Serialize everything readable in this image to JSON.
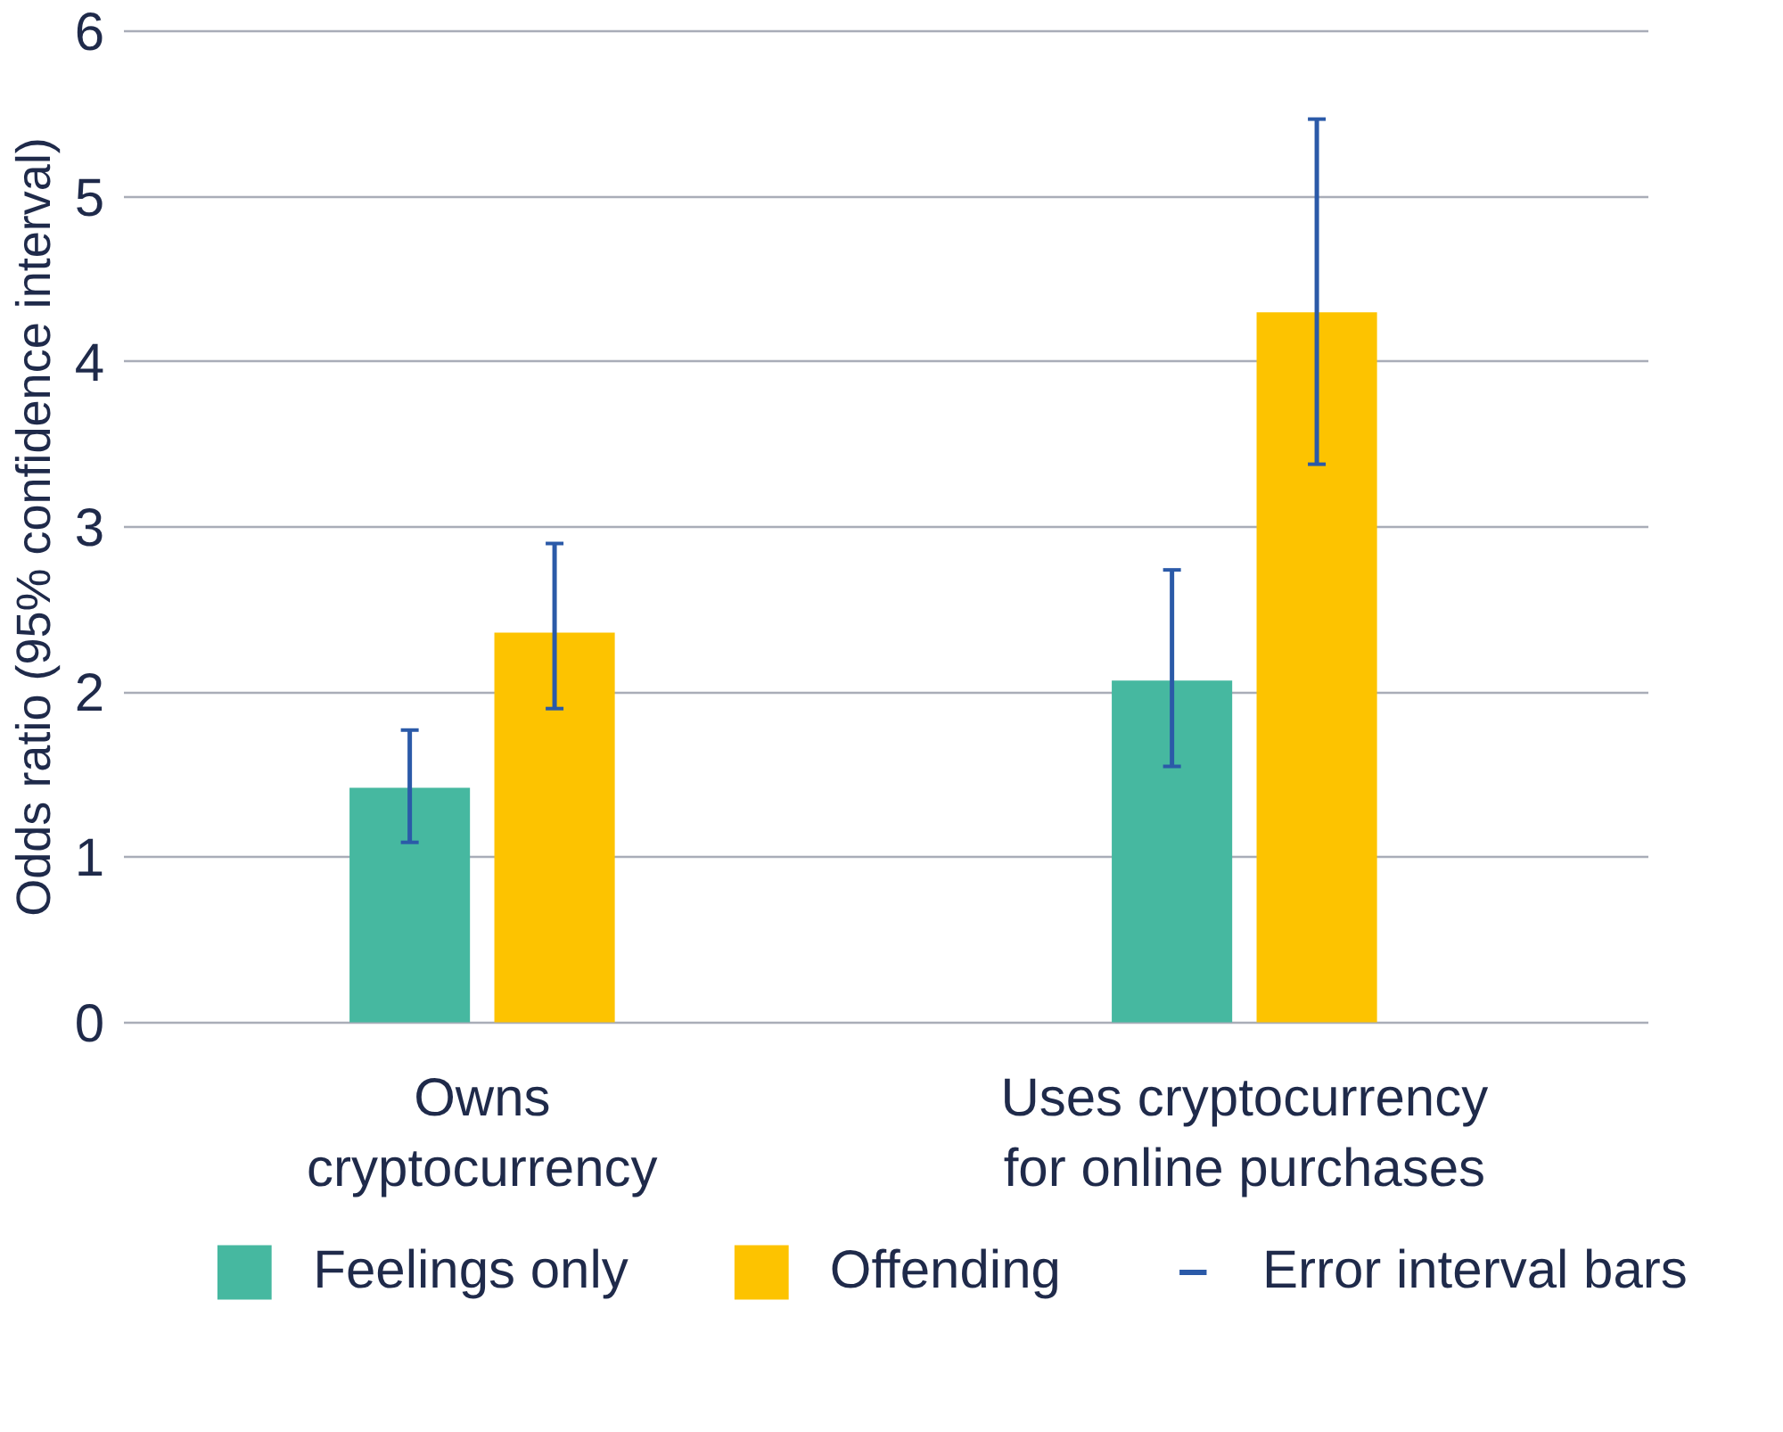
{
  "chart_data": {
    "type": "bar",
    "ylabel": "Odds ratio (95% confidence interval)",
    "categories": [
      "Owns cryptocurrency",
      "Uses cryptocurrency for online purchases"
    ],
    "series": [
      {
        "name": "Feelings only",
        "color": "#46b8a0",
        "values": [
          1.42,
          2.07
        ],
        "errors": [
          [
            1.09,
            1.77
          ],
          [
            1.55,
            2.74
          ]
        ]
      },
      {
        "name": "Offending",
        "color": "#fdc300",
        "values": [
          2.36,
          4.3
        ],
        "errors": [
          [
            1.9,
            2.9
          ],
          [
            3.38,
            5.47
          ]
        ]
      }
    ],
    "annotations": [
      "Error interval bars"
    ],
    "ylim": [
      0,
      6
    ],
    "yticks": [
      0,
      1,
      2,
      3,
      4,
      5,
      6
    ],
    "grid": "y",
    "legend": "bottom"
  }
}
